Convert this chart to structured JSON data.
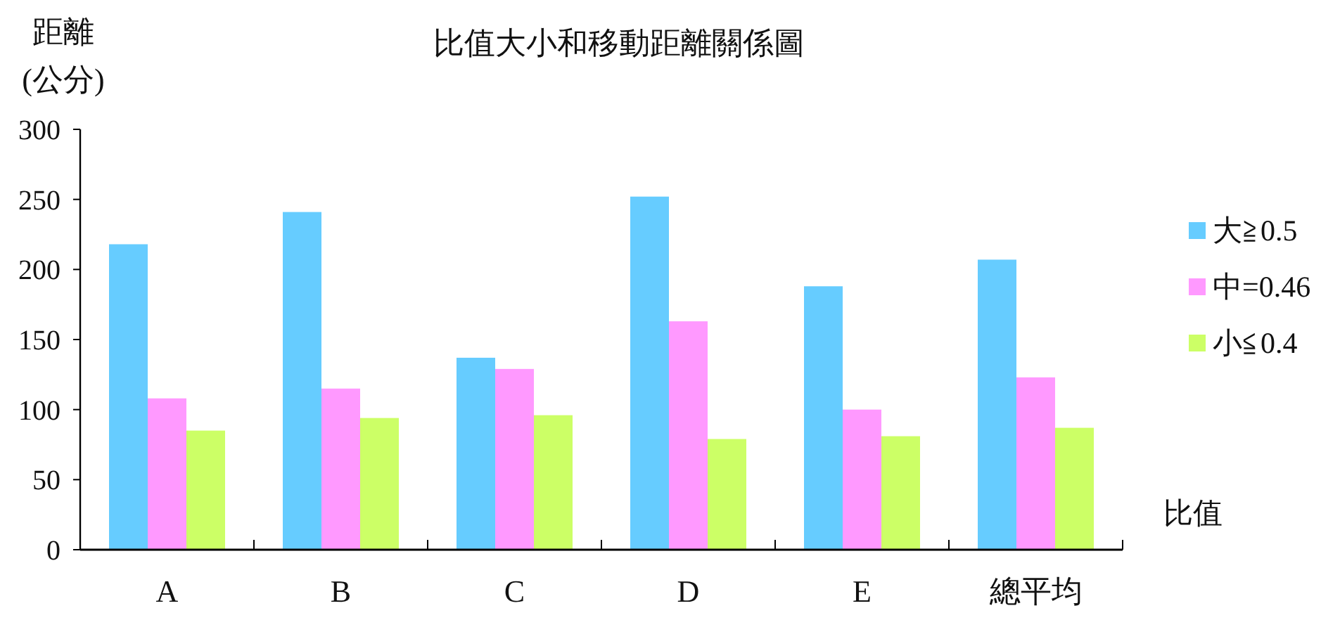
{
  "chart_data": {
    "type": "bar",
    "title": "比值大小和移動距離關係圖",
    "xlabel": "比值",
    "ylabel": "距離\n(公分)",
    "categories": [
      "A",
      "B",
      "C",
      "D",
      "E",
      "總平均"
    ],
    "series": [
      {
        "name": "大≧0.5",
        "color": "#66ccff",
        "values": [
          218,
          241,
          137,
          252,
          188,
          207
        ]
      },
      {
        "name": "中=0.46",
        "color": "#ff99ff",
        "values": [
          108,
          115,
          129,
          163,
          100,
          123
        ]
      },
      {
        "name": "小≦0.4",
        "color": "#ccff66",
        "values": [
          85,
          94,
          96,
          79,
          81,
          87
        ]
      }
    ],
    "ylim": [
      0,
      300
    ],
    "yticks": [
      0,
      50,
      100,
      150,
      200,
      250,
      300
    ],
    "grid": false,
    "legend": "right"
  }
}
